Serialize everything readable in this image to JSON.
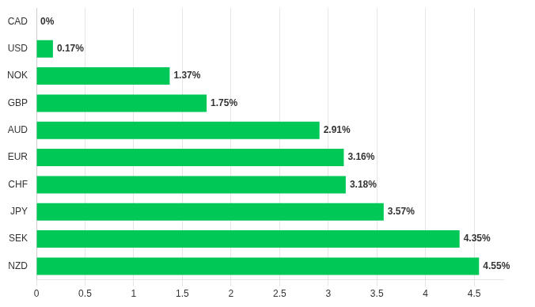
{
  "chart_data": {
    "type": "bar",
    "orientation": "horizontal",
    "categories": [
      "CAD",
      "USD",
      "NOK",
      "GBP",
      "AUD",
      "EUR",
      "CHF",
      "JPY",
      "SEK",
      "NZD"
    ],
    "values": [
      0.0,
      0.17,
      1.37,
      1.75,
      2.91,
      3.16,
      3.18,
      3.57,
      4.35,
      4.55
    ],
    "value_labels": [
      "0%",
      "0.17%",
      "1.37%",
      "1.75%",
      "2.91%",
      "3.16%",
      "3.18%",
      "3.57%",
      "4.35%",
      "4.55%"
    ],
    "data_labels": true,
    "color": "#00c857",
    "xlim": [
      0,
      4.8
    ],
    "xticks": [
      0,
      0.5,
      1,
      1.5,
      2,
      2.5,
      3,
      3.5,
      4,
      4.5
    ],
    "grid": true
  }
}
